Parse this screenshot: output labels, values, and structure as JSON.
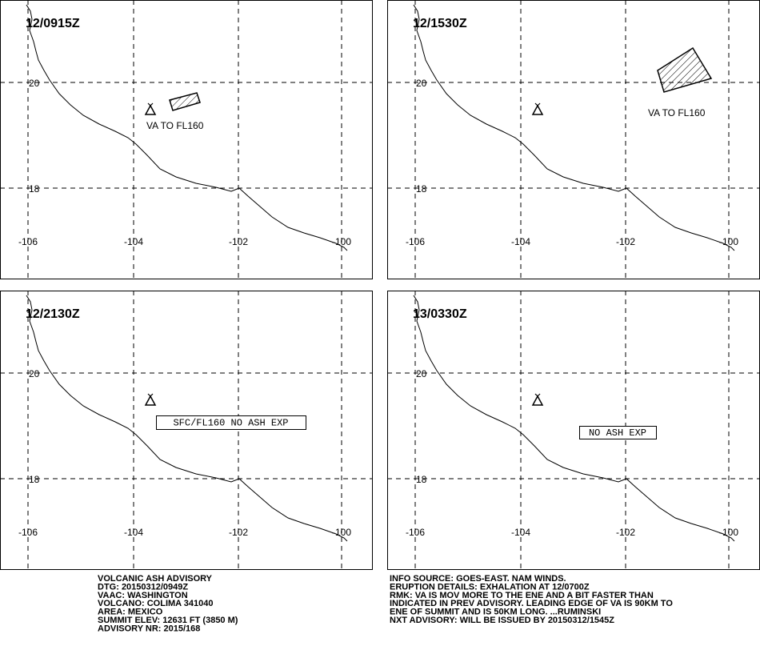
{
  "panels": [
    {
      "title": "12/0915Z",
      "annotation": "VA TO FL160"
    },
    {
      "title": "12/1530Z",
      "annotation": "VA TO FL160"
    },
    {
      "title": "12/2130Z",
      "annotation": "SFC/FL160 NO ASH EXP"
    },
    {
      "title": "13/0330Z",
      "annotation": "NO ASH EXP"
    }
  ],
  "grid": {
    "lon_labels": [
      "-106",
      "-104",
      "-102",
      "-100"
    ],
    "lat_labels": [
      "20",
      "18"
    ]
  },
  "advisory": {
    "left": [
      "VOLCANIC ASH ADVISORY",
      "DTG: 20150312/0949Z",
      "VAAC: WASHINGTON",
      "VOLCANO: COLIMA 341040",
      "AREA: MEXICO",
      "SUMMIT ELEV: 12631 FT (3850 M)",
      "ADVISORY NR: 2015/168"
    ],
    "right": [
      "INFO SOURCE: GOES-EAST. NAM WINDS.",
      "ERUPTION DETAILS: EXHALATION AT 12/0700Z",
      "RMK: VA IS MOV MORE TO THE ENE AND A BIT FASTER THAN",
      "INDICATED IN PREV ADVISORY. LEADING EDGE OF VA IS 90KM TO",
      "ENE OF SUMMIT AND IS 50KM LONG. ...RUMINSKI",
      "NXT ADVISORY: WILL BE ISSUED BY 20150312/1545Z"
    ]
  }
}
